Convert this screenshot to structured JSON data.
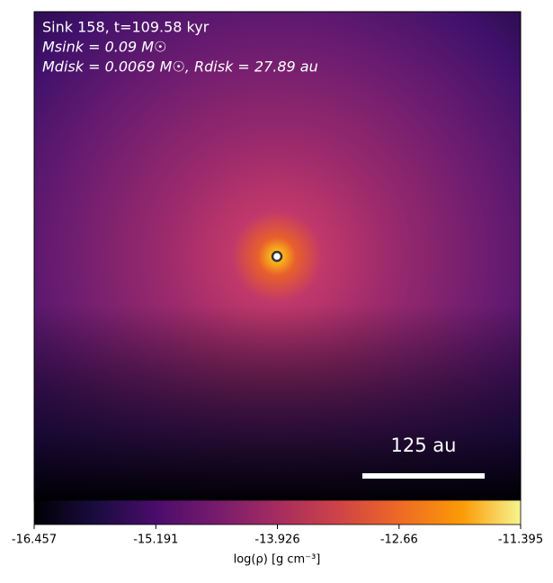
{
  "chart_data": {
    "type": "heatmap",
    "annotations": [
      "Sink 158, t=109.58 kyr",
      "Msink = 0.09 M☉",
      "Mdisk = 0.0069 M☉, Rdisk = 27.89 au"
    ],
    "scale_bar": "125 au",
    "colorbar_label": "log(ρ) [g cm⁻³]",
    "clim": [
      -16.457,
      -11.395
    ],
    "cticks": [
      -16.457,
      -15.191,
      -13.926,
      -12.66,
      {
        "value": -11.395,
        "label": "-11.395"
      }
    ],
    "colormap": "inferno"
  }
}
